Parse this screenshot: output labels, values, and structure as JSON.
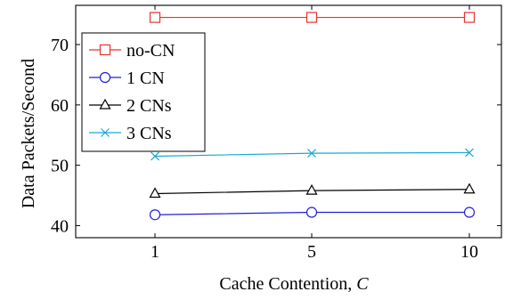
{
  "chart_data": {
    "type": "line",
    "x": [
      1,
      5,
      10
    ],
    "xticks": [
      "1",
      "5",
      "10"
    ],
    "yticks": [
      40,
      50,
      60,
      70
    ],
    "ylim": [
      38,
      76.5
    ],
    "xlabel_text": "Cache Contention, ",
    "xlabel_var": "C",
    "ylabel": "Data Packets/Second",
    "legend_position": "top-left",
    "grid": false,
    "series": [
      {
        "name": "no-CN",
        "values": [
          74.5,
          74.5,
          74.5
        ],
        "color": "#e8312f",
        "marker": "square"
      },
      {
        "name": "1 CN",
        "values": [
          41.8,
          42.2,
          42.2
        ],
        "color": "#1f1fd9",
        "marker": "circle"
      },
      {
        "name": "2 CNs",
        "values": [
          45.3,
          45.8,
          46.0
        ],
        "color": "#000000",
        "marker": "triangle"
      },
      {
        "name": "3 CNs",
        "values": [
          51.5,
          52.0,
          52.1
        ],
        "color": "#18a9d6",
        "marker": "x"
      }
    ]
  }
}
